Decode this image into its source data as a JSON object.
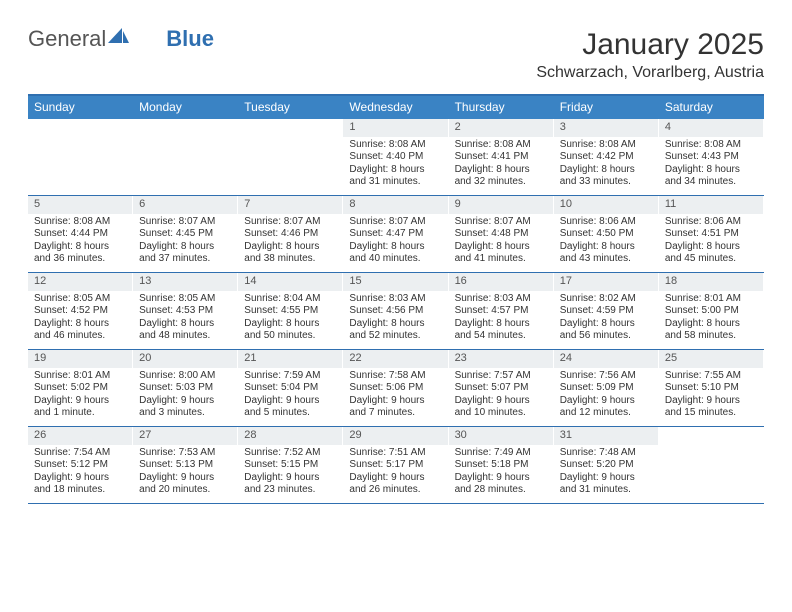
{
  "brand": {
    "word1": "General",
    "word2": "Blue"
  },
  "title": "January 2025",
  "location": "Schwarzach, Vorarlberg, Austria",
  "colors": {
    "header_bar": "#3a83c4",
    "accent_line": "#2f6fb0",
    "daynum_bg": "#eceff1",
    "text": "#333333"
  },
  "dow": [
    "Sunday",
    "Monday",
    "Tuesday",
    "Wednesday",
    "Thursday",
    "Friday",
    "Saturday"
  ],
  "first_weekday_index": 3,
  "days": [
    {
      "n": "1",
      "sr": "Sunrise: 8:08 AM",
      "ss": "Sunset: 4:40 PM",
      "d1": "Daylight: 8 hours",
      "d2": "and 31 minutes."
    },
    {
      "n": "2",
      "sr": "Sunrise: 8:08 AM",
      "ss": "Sunset: 4:41 PM",
      "d1": "Daylight: 8 hours",
      "d2": "and 32 minutes."
    },
    {
      "n": "3",
      "sr": "Sunrise: 8:08 AM",
      "ss": "Sunset: 4:42 PM",
      "d1": "Daylight: 8 hours",
      "d2": "and 33 minutes."
    },
    {
      "n": "4",
      "sr": "Sunrise: 8:08 AM",
      "ss": "Sunset: 4:43 PM",
      "d1": "Daylight: 8 hours",
      "d2": "and 34 minutes."
    },
    {
      "n": "5",
      "sr": "Sunrise: 8:08 AM",
      "ss": "Sunset: 4:44 PM",
      "d1": "Daylight: 8 hours",
      "d2": "and 36 minutes."
    },
    {
      "n": "6",
      "sr": "Sunrise: 8:07 AM",
      "ss": "Sunset: 4:45 PM",
      "d1": "Daylight: 8 hours",
      "d2": "and 37 minutes."
    },
    {
      "n": "7",
      "sr": "Sunrise: 8:07 AM",
      "ss": "Sunset: 4:46 PM",
      "d1": "Daylight: 8 hours",
      "d2": "and 38 minutes."
    },
    {
      "n": "8",
      "sr": "Sunrise: 8:07 AM",
      "ss": "Sunset: 4:47 PM",
      "d1": "Daylight: 8 hours",
      "d2": "and 40 minutes."
    },
    {
      "n": "9",
      "sr": "Sunrise: 8:07 AM",
      "ss": "Sunset: 4:48 PM",
      "d1": "Daylight: 8 hours",
      "d2": "and 41 minutes."
    },
    {
      "n": "10",
      "sr": "Sunrise: 8:06 AM",
      "ss": "Sunset: 4:50 PM",
      "d1": "Daylight: 8 hours",
      "d2": "and 43 minutes."
    },
    {
      "n": "11",
      "sr": "Sunrise: 8:06 AM",
      "ss": "Sunset: 4:51 PM",
      "d1": "Daylight: 8 hours",
      "d2": "and 45 minutes."
    },
    {
      "n": "12",
      "sr": "Sunrise: 8:05 AM",
      "ss": "Sunset: 4:52 PM",
      "d1": "Daylight: 8 hours",
      "d2": "and 46 minutes."
    },
    {
      "n": "13",
      "sr": "Sunrise: 8:05 AM",
      "ss": "Sunset: 4:53 PM",
      "d1": "Daylight: 8 hours",
      "d2": "and 48 minutes."
    },
    {
      "n": "14",
      "sr": "Sunrise: 8:04 AM",
      "ss": "Sunset: 4:55 PM",
      "d1": "Daylight: 8 hours",
      "d2": "and 50 minutes."
    },
    {
      "n": "15",
      "sr": "Sunrise: 8:03 AM",
      "ss": "Sunset: 4:56 PM",
      "d1": "Daylight: 8 hours",
      "d2": "and 52 minutes."
    },
    {
      "n": "16",
      "sr": "Sunrise: 8:03 AM",
      "ss": "Sunset: 4:57 PM",
      "d1": "Daylight: 8 hours",
      "d2": "and 54 minutes."
    },
    {
      "n": "17",
      "sr": "Sunrise: 8:02 AM",
      "ss": "Sunset: 4:59 PM",
      "d1": "Daylight: 8 hours",
      "d2": "and 56 minutes."
    },
    {
      "n": "18",
      "sr": "Sunrise: 8:01 AM",
      "ss": "Sunset: 5:00 PM",
      "d1": "Daylight: 8 hours",
      "d2": "and 58 minutes."
    },
    {
      "n": "19",
      "sr": "Sunrise: 8:01 AM",
      "ss": "Sunset: 5:02 PM",
      "d1": "Daylight: 9 hours",
      "d2": "and 1 minute."
    },
    {
      "n": "20",
      "sr": "Sunrise: 8:00 AM",
      "ss": "Sunset: 5:03 PM",
      "d1": "Daylight: 9 hours",
      "d2": "and 3 minutes."
    },
    {
      "n": "21",
      "sr": "Sunrise: 7:59 AM",
      "ss": "Sunset: 5:04 PM",
      "d1": "Daylight: 9 hours",
      "d2": "and 5 minutes."
    },
    {
      "n": "22",
      "sr": "Sunrise: 7:58 AM",
      "ss": "Sunset: 5:06 PM",
      "d1": "Daylight: 9 hours",
      "d2": "and 7 minutes."
    },
    {
      "n": "23",
      "sr": "Sunrise: 7:57 AM",
      "ss": "Sunset: 5:07 PM",
      "d1": "Daylight: 9 hours",
      "d2": "and 10 minutes."
    },
    {
      "n": "24",
      "sr": "Sunrise: 7:56 AM",
      "ss": "Sunset: 5:09 PM",
      "d1": "Daylight: 9 hours",
      "d2": "and 12 minutes."
    },
    {
      "n": "25",
      "sr": "Sunrise: 7:55 AM",
      "ss": "Sunset: 5:10 PM",
      "d1": "Daylight: 9 hours",
      "d2": "and 15 minutes."
    },
    {
      "n": "26",
      "sr": "Sunrise: 7:54 AM",
      "ss": "Sunset: 5:12 PM",
      "d1": "Daylight: 9 hours",
      "d2": "and 18 minutes."
    },
    {
      "n": "27",
      "sr": "Sunrise: 7:53 AM",
      "ss": "Sunset: 5:13 PM",
      "d1": "Daylight: 9 hours",
      "d2": "and 20 minutes."
    },
    {
      "n": "28",
      "sr": "Sunrise: 7:52 AM",
      "ss": "Sunset: 5:15 PM",
      "d1": "Daylight: 9 hours",
      "d2": "and 23 minutes."
    },
    {
      "n": "29",
      "sr": "Sunrise: 7:51 AM",
      "ss": "Sunset: 5:17 PM",
      "d1": "Daylight: 9 hours",
      "d2": "and 26 minutes."
    },
    {
      "n": "30",
      "sr": "Sunrise: 7:49 AM",
      "ss": "Sunset: 5:18 PM",
      "d1": "Daylight: 9 hours",
      "d2": "and 28 minutes."
    },
    {
      "n": "31",
      "sr": "Sunrise: 7:48 AM",
      "ss": "Sunset: 5:20 PM",
      "d1": "Daylight: 9 hours",
      "d2": "and 31 minutes."
    }
  ]
}
